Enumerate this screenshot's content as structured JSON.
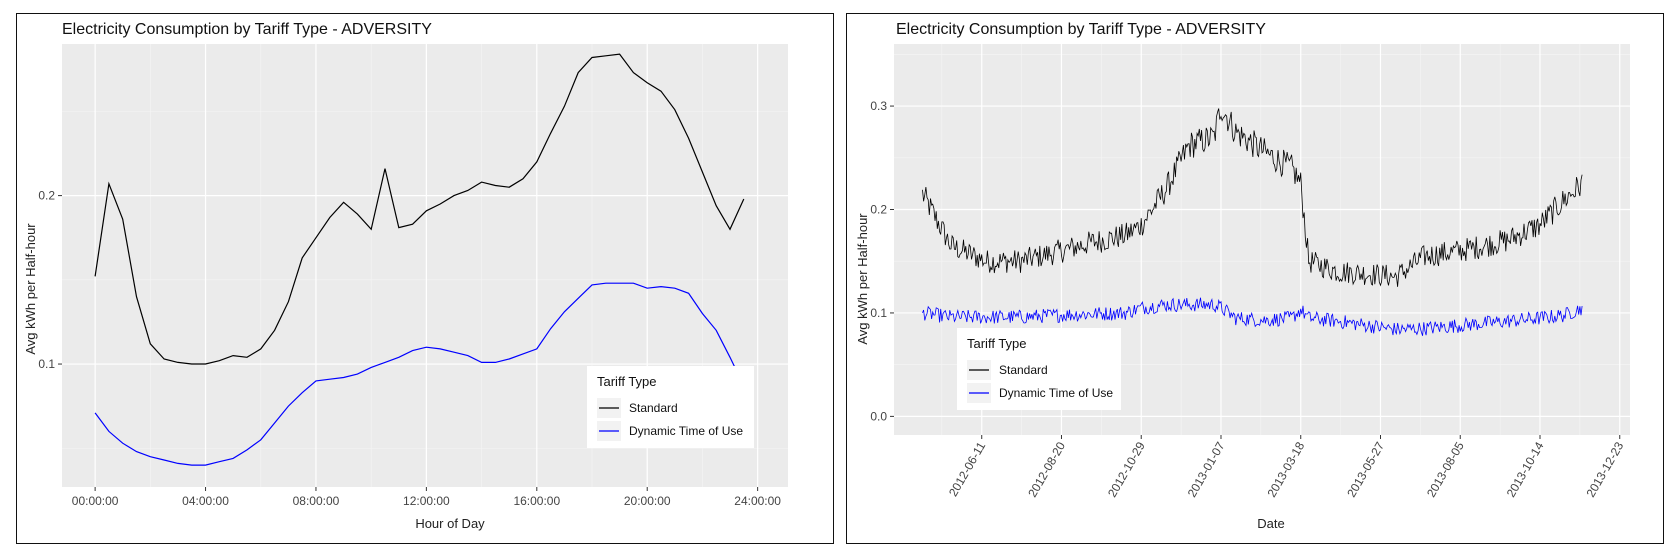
{
  "chart_data": [
    {
      "type": "line",
      "title": "Electricity Consumption by Tariff Type - ADVERSITY",
      "xlabel": "Hour of Day",
      "ylabel": "Avg kWh per Half-hour",
      "x_tick_labels": [
        "00:00:00",
        "04:00:00",
        "08:00:00",
        "12:00:00",
        "16:00:00",
        "20:00:00",
        "24:00:00"
      ],
      "y_tick_labels": [
        "0.1",
        "0.2"
      ],
      "xlim_hours": [
        -1.2,
        25.1
      ],
      "ylim": [
        0.027,
        0.29
      ],
      "grid": true,
      "legend": {
        "title": "Tariff Type",
        "position": "bottom-right inside"
      },
      "series": [
        {
          "name": "Standard",
          "color": "#000000",
          "x": [
            0,
            0.5,
            1,
            1.5,
            2,
            2.5,
            3,
            3.5,
            4,
            4.5,
            5,
            5.5,
            6,
            6.5,
            7,
            7.5,
            8,
            8.5,
            9,
            9.5,
            10,
            10.5,
            11,
            11.5,
            12,
            12.5,
            13,
            13.5,
            14,
            14.5,
            15,
            15.5,
            16,
            16.5,
            17,
            17.5,
            18,
            18.5,
            19,
            19.5,
            20,
            20.5,
            21,
            21.5,
            22,
            22.5,
            23,
            23.5
          ],
          "y": [
            0.152,
            0.207,
            0.186,
            0.14,
            0.112,
            0.103,
            0.101,
            0.1,
            0.1,
            0.102,
            0.105,
            0.104,
            0.109,
            0.12,
            0.137,
            0.163,
            0.175,
            0.187,
            0.196,
            0.189,
            0.18,
            0.216,
            0.181,
            0.183,
            0.191,
            0.195,
            0.2,
            0.203,
            0.208,
            0.206,
            0.205,
            0.21,
            0.22,
            0.237,
            0.253,
            0.273,
            0.282,
            0.283,
            0.284,
            0.273,
            0.267,
            0.262,
            0.251,
            0.234,
            0.214,
            0.194,
            0.18,
            0.198
          ]
        },
        {
          "name": "Dynamic Time of Use",
          "color": "#0000ff",
          "x": [
            0,
            0.5,
            1,
            1.5,
            2,
            2.5,
            3,
            3.5,
            4,
            4.5,
            5,
            5.5,
            6,
            6.5,
            7,
            7.5,
            8,
            8.5,
            9,
            9.5,
            10,
            10.5,
            11,
            11.5,
            12,
            12.5,
            13,
            13.5,
            14,
            14.5,
            15,
            15.5,
            16,
            16.5,
            17,
            17.5,
            18,
            18.5,
            19,
            19.5,
            20,
            20.5,
            21,
            21.5,
            22,
            22.5,
            23,
            23.5
          ],
          "y": [
            0.071,
            0.06,
            0.053,
            0.048,
            0.045,
            0.043,
            0.041,
            0.04,
            0.04,
            0.042,
            0.044,
            0.049,
            0.055,
            0.065,
            0.075,
            0.083,
            0.09,
            0.091,
            0.092,
            0.094,
            0.098,
            0.101,
            0.104,
            0.108,
            0.11,
            0.109,
            0.107,
            0.105,
            0.101,
            0.101,
            0.103,
            0.106,
            0.109,
            0.121,
            0.131,
            0.139,
            0.147,
            0.148,
            0.148,
            0.148,
            0.145,
            0.146,
            0.145,
            0.142,
            0.13,
            0.12,
            0.104,
            0.087
          ]
        }
      ]
    },
    {
      "type": "line",
      "title": "Electricity Consumption by Tariff Type - ADVERSITY",
      "xlabel": "Date",
      "ylabel": "Avg kWh per Half-hour",
      "x_tick_labels": [
        "2012-06-11",
        "2012-08-20",
        "2012-10-29",
        "2013-01-07",
        "2013-03-18",
        "2013-05-27",
        "2013-08-05",
        "2013-10-14",
        "2013-12-23"
      ],
      "y_tick_labels": [
        "0.0",
        "0.1",
        "0.2",
        "0.3"
      ],
      "xlim": [
        "2012-03-26",
        "2014-01-01"
      ],
      "ylim": [
        -0.018,
        0.36
      ],
      "grid": true,
      "legend": {
        "title": "Tariff Type",
        "position": "left inside"
      },
      "series_anchor_dates": [
        "2012-04-20",
        "2012-05-15",
        "2012-06-15",
        "2012-07-15",
        "2012-08-20",
        "2012-09-15",
        "2012-10-15",
        "2012-10-29",
        "2012-11-20",
        "2012-12-10",
        "2013-01-01",
        "2013-01-07",
        "2013-01-20",
        "2013-02-15",
        "2013-03-10",
        "2013-03-18",
        "2013-03-25",
        "2013-04-20",
        "2013-05-15",
        "2013-06-10",
        "2013-07-05",
        "2013-08-05",
        "2013-09-15",
        "2013-10-14",
        "2013-11-05",
        "2013-11-20"
      ],
      "series": [
        {
          "name": "Standard",
          "color": "#000000",
          "values": [
            0.215,
            0.165,
            0.15,
            0.15,
            0.16,
            0.168,
            0.175,
            0.185,
            0.22,
            0.262,
            0.27,
            0.3,
            0.275,
            0.255,
            0.24,
            0.225,
            0.15,
            0.14,
            0.138,
            0.135,
            0.155,
            0.16,
            0.17,
            0.185,
            0.21,
            0.225
          ]
        },
        {
          "name": "Dynamic Time of Use",
          "color": "#0000ff",
          "values": [
            0.1,
            0.096,
            0.096,
            0.096,
            0.098,
            0.099,
            0.1,
            0.105,
            0.108,
            0.108,
            0.108,
            0.105,
            0.095,
            0.093,
            0.095,
            0.103,
            0.095,
            0.092,
            0.088,
            0.084,
            0.085,
            0.088,
            0.092,
            0.095,
            0.098,
            0.105
          ]
        }
      ]
    }
  ]
}
